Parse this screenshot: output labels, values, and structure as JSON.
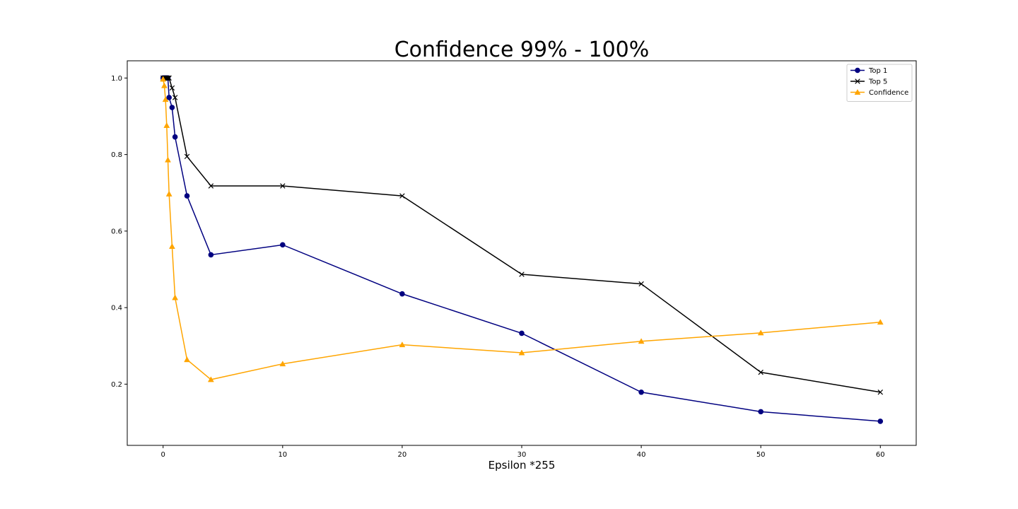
{
  "chart_data": {
    "type": "line",
    "title": "Confidence 99% - 100%",
    "xlabel": "Epsilon *255",
    "ylabel": "",
    "xlim": [
      -3,
      63
    ],
    "ylim": [
      0.04,
      1.045
    ],
    "xticks": [
      0,
      10,
      20,
      30,
      40,
      50,
      60
    ],
    "yticks": [
      0.2,
      0.4,
      0.6,
      0.8,
      1.0
    ],
    "ytick_labels": [
      "0.2",
      "0.4",
      "0.6",
      "0.8",
      "1.0"
    ],
    "grid": false,
    "legend_position": "top-right",
    "x": [
      0,
      0.1,
      0.2,
      0.3,
      0.4,
      0.5,
      0.75,
      1,
      2,
      4,
      10,
      20,
      30,
      40,
      50,
      60
    ],
    "series": [
      {
        "name": "Top 1",
        "color": "#000080",
        "marker": "circle",
        "values": [
          1.0,
          1.0,
          1.0,
          1.0,
          1.0,
          0.949,
          0.923,
          0.846,
          0.692,
          0.538,
          0.564,
          0.436,
          0.333,
          0.179,
          0.128,
          0.103
        ]
      },
      {
        "name": "Top 5",
        "color": "#000000",
        "marker": "x",
        "values": [
          1.0,
          1.0,
          1.0,
          1.0,
          1.0,
          1.0,
          0.974,
          0.949,
          0.795,
          0.718,
          0.718,
          0.692,
          0.487,
          0.462,
          0.231,
          0.179
        ]
      },
      {
        "name": "Confidence",
        "color": "#FFA500",
        "marker": "triangle",
        "values": [
          0.997,
          0.98,
          0.944,
          0.876,
          0.786,
          0.697,
          0.56,
          0.426,
          0.264,
          0.212,
          0.253,
          0.303,
          0.282,
          0.312,
          0.334,
          0.362
        ]
      }
    ]
  }
}
